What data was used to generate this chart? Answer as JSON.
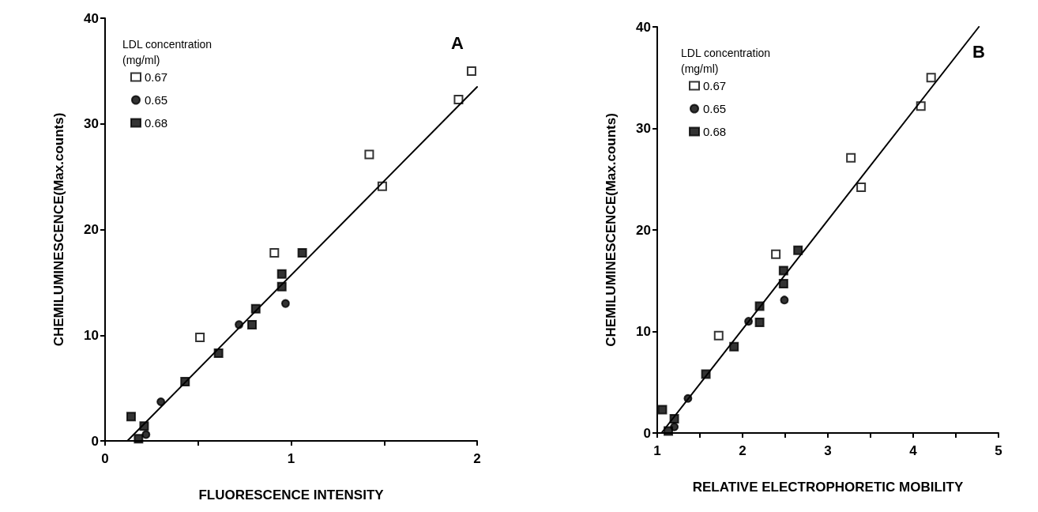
{
  "chart_data": [
    {
      "type": "scatter",
      "xlabel": "FLUORESCENCE INTENSITY",
      "ylabel": "CHEMILUMINESCENCE(Max.counts)",
      "legend_title": "LDL concentration\n(mg/ml)",
      "legend": "top left",
      "annotations": [
        "A"
      ],
      "xlim": [
        0,
        2
      ],
      "xticks": [
        0,
        {
          "value": 0.5,
          "label": null
        },
        1,
        {
          "value": 1.5,
          "label": null
        },
        2
      ],
      "ylim": [
        0,
        40
      ],
      "yticks": [
        0,
        10,
        20,
        30,
        40
      ],
      "series": [
        {
          "name": "0.67",
          "marker": "square",
          "color": "#ffffff",
          "x": [
            0.51,
            0.91,
            1.42,
            1.49,
            1.9,
            1.97
          ],
          "values": [
            9.8,
            17.8,
            27.1,
            24.1,
            32.3,
            35.0
          ]
        },
        {
          "name": "0.65",
          "marker": "circle",
          "color": "#000000",
          "x": [
            0.22,
            0.3,
            0.72,
            0.97
          ],
          "values": [
            0.6,
            3.7,
            11.0,
            13.0
          ]
        },
        {
          "name": "0.68",
          "marker": "square",
          "color": "#000000",
          "x": [
            0.14,
            0.18,
            0.21,
            0.43,
            0.61,
            0.79,
            0.81,
            0.95,
            0.95,
            1.06
          ],
          "values": [
            2.3,
            0.2,
            1.4,
            5.6,
            8.3,
            11.0,
            12.5,
            14.6,
            15.8,
            17.8
          ]
        },
        {
          "type": "line",
          "marker": "none",
          "color": "#000000",
          "x": [
            0.12,
            2
          ],
          "values": [
            0,
            33.5
          ]
        }
      ]
    },
    {
      "type": "scatter",
      "xlabel": "RELATIVE ELECTROPHORETIC MOBILITY",
      "ylabel": "CHEMILUMINESCENCE(Max.counts)",
      "legend_title": "LDL concentration\n(mg/ml)",
      "legend": "top left",
      "annotations": [
        "B"
      ],
      "xlim": [
        1,
        5
      ],
      "xticks": [
        1,
        {
          "value": 1.5,
          "label": null
        },
        2,
        {
          "value": 2.5,
          "label": null
        },
        3,
        {
          "value": 3.5,
          "label": null
        },
        4,
        {
          "value": 4.5,
          "label": null
        },
        5
      ],
      "ylim": [
        0,
        40
      ],
      "yticks": [
        0,
        10,
        20,
        30,
        40
      ],
      "series": [
        {
          "name": "0.67",
          "marker": "square",
          "color": "#ffffff",
          "x": [
            1.72,
            2.39,
            3.27,
            3.39,
            4.09,
            4.21
          ],
          "values": [
            9.6,
            17.6,
            27.1,
            24.2,
            32.2,
            35.0
          ]
        },
        {
          "name": "0.65",
          "marker": "circle",
          "color": "#000000",
          "x": [
            1.2,
            1.36,
            2.07,
            2.49
          ],
          "values": [
            0.6,
            3.4,
            11.0,
            13.1
          ]
        },
        {
          "name": "0.68",
          "marker": "square",
          "color": "#000000",
          "x": [
            1.06,
            1.13,
            1.2,
            1.57,
            1.9,
            2.2,
            2.2,
            2.48,
            2.48,
            2.65
          ],
          "values": [
            2.3,
            0.2,
            1.4,
            5.8,
            8.5,
            10.9,
            12.5,
            14.7,
            16.0,
            18.0
          ]
        },
        {
          "type": "line",
          "marker": "none",
          "color": "#000000",
          "x": [
            1.05,
            4.77
          ],
          "values": [
            0,
            40
          ]
        }
      ]
    }
  ]
}
